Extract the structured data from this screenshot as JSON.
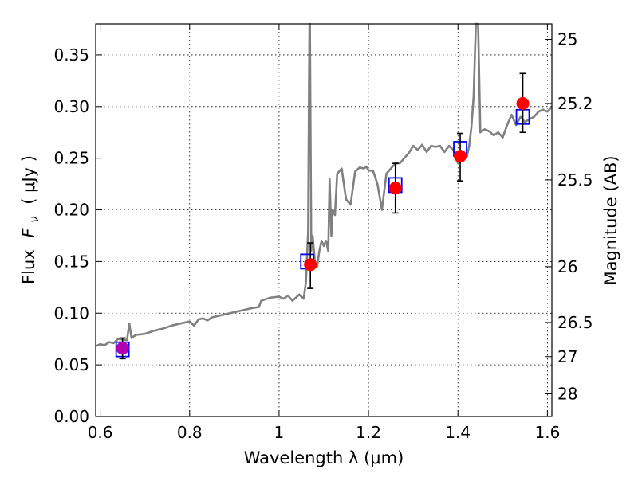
{
  "chart_data": {
    "type": "scatter",
    "xlabel": "Wavelength  λ (μm)",
    "ylabel_prefix": "Flux",
    "ylabel_symbol": "F",
    "ylabel_sub": "ν",
    "ylabel_units": "( μJy )",
    "y2label": "Magnitude (AB)",
    "xlim": [
      0.59,
      1.61
    ],
    "ylim": [
      0.0,
      0.38
    ],
    "grid": true,
    "xticks": [
      0.6,
      0.8,
      1.0,
      1.2,
      1.4,
      1.6
    ],
    "xtick_labels": [
      "0.6",
      "0.8",
      "1",
      "1.2",
      "1.4",
      "1.6"
    ],
    "yticks": [
      0.0,
      0.05,
      0.1,
      0.15,
      0.2,
      0.25,
      0.3,
      0.35
    ],
    "ytick_labels": [
      "0.00",
      "0.05",
      "0.10",
      "0.15",
      "0.20",
      "0.25",
      "0.30",
      "0.35"
    ],
    "y2ticks": [
      {
        "label": "25",
        "flux": 0.365
      },
      {
        "label": "25.2",
        "flux": 0.303
      },
      {
        "label": "25.5",
        "flux": 0.229
      },
      {
        "label": "26",
        "flux": 0.145
      },
      {
        "label": "26.5",
        "flux": 0.091
      },
      {
        "label": "27",
        "flux": 0.058
      },
      {
        "label": "28",
        "flux": 0.022
      }
    ],
    "observed": [
      {
        "x": 0.65,
        "y": 0.066,
        "yerr_low": 0.056,
        "yerr_high": 0.076
      },
      {
        "x": 1.07,
        "y": 0.147,
        "yerr_low": 0.124,
        "yerr_high": 0.168
      },
      {
        "x": 1.26,
        "y": 0.221,
        "yerr_low": 0.197,
        "yerr_high": 0.245
      },
      {
        "x": 1.405,
        "y": 0.252,
        "yerr_low": 0.228,
        "yerr_high": 0.274
      },
      {
        "x": 1.545,
        "y": 0.303,
        "yerr_low": 0.275,
        "yerr_high": 0.332
      }
    ],
    "model_bandpass": [
      {
        "x": 0.65,
        "y": 0.065
      },
      {
        "x": 1.063,
        "y": 0.15
      },
      {
        "x": 1.26,
        "y": 0.224
      },
      {
        "x": 1.405,
        "y": 0.259
      },
      {
        "x": 1.545,
        "y": 0.29
      }
    ],
    "model_spectrum": {
      "x": [
        0.59,
        0.6,
        0.61,
        0.62,
        0.63,
        0.64,
        0.66,
        0.665,
        0.67,
        0.68,
        0.7,
        0.72,
        0.74,
        0.76,
        0.78,
        0.8,
        0.81,
        0.82,
        0.83,
        0.84,
        0.85,
        0.86,
        0.88,
        0.9,
        0.92,
        0.94,
        0.955,
        0.96,
        0.98,
        1.0,
        1.01,
        1.02,
        1.03,
        1.045,
        1.055,
        1.06,
        1.065,
        1.067,
        1.068,
        1.069,
        1.072,
        1.075,
        1.08,
        1.085,
        1.09,
        1.095,
        1.1,
        1.105,
        1.11,
        1.113,
        1.117,
        1.12,
        1.125,
        1.13,
        1.14,
        1.15,
        1.16,
        1.17,
        1.18,
        1.19,
        1.195,
        1.2,
        1.21,
        1.22,
        1.23,
        1.24,
        1.25,
        1.26,
        1.27,
        1.28,
        1.29,
        1.3,
        1.31,
        1.32,
        1.33,
        1.34,
        1.35,
        1.36,
        1.37,
        1.38,
        1.39,
        1.4,
        1.41,
        1.415,
        1.42,
        1.425,
        1.43,
        1.435,
        1.44,
        1.445,
        1.45,
        1.46,
        1.47,
        1.48,
        1.49,
        1.5,
        1.51,
        1.52,
        1.53,
        1.54,
        1.55,
        1.56,
        1.57,
        1.58,
        1.59,
        1.6,
        1.61
      ],
      "y": [
        0.068,
        0.07,
        0.069,
        0.072,
        0.071,
        0.075,
        0.074,
        0.09,
        0.076,
        0.079,
        0.08,
        0.083,
        0.085,
        0.088,
        0.09,
        0.092,
        0.088,
        0.094,
        0.095,
        0.093,
        0.096,
        0.097,
        0.099,
        0.101,
        0.103,
        0.105,
        0.106,
        0.112,
        0.115,
        0.116,
        0.114,
        0.117,
        0.112,
        0.118,
        0.114,
        0.13,
        0.18,
        0.32,
        0.38,
        0.38,
        0.16,
        0.175,
        0.15,
        0.145,
        0.16,
        0.17,
        0.165,
        0.17,
        0.16,
        0.23,
        0.175,
        0.2,
        0.195,
        0.235,
        0.24,
        0.21,
        0.205,
        0.237,
        0.241,
        0.24,
        0.242,
        0.238,
        0.238,
        0.225,
        0.2,
        0.235,
        0.24,
        0.245,
        0.245,
        0.25,
        0.255,
        0.262,
        0.258,
        0.263,
        0.256,
        0.262,
        0.261,
        0.262,
        0.256,
        0.262,
        0.258,
        0.245,
        0.248,
        0.25,
        0.252,
        0.262,
        0.28,
        0.31,
        0.38,
        0.38,
        0.275,
        0.278,
        0.276,
        0.272,
        0.275,
        0.27,
        0.282,
        0.292,
        0.282,
        0.29,
        0.285,
        0.288,
        0.29,
        0.295,
        0.297,
        0.295,
        0.3
      ]
    }
  }
}
